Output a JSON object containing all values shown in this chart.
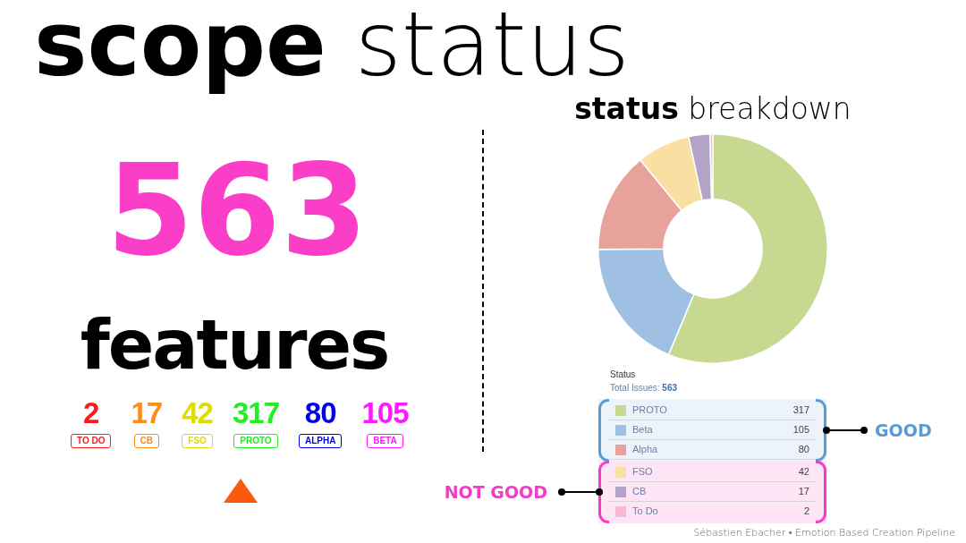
{
  "chart_data": [
    {
      "type": "other",
      "title": "scope status",
      "annotations": [
        "563",
        "features"
      ],
      "categories": [
        "TO DO",
        "CB",
        "FSO",
        "PROTO",
        "ALPHA",
        "BETA"
      ],
      "values": [
        2,
        17,
        42,
        317,
        80,
        105
      ],
      "colors": [
        "#ff1a1a",
        "#ff8c1a",
        "#dddd00",
        "#22ee22",
        "#0000ee",
        "#ff1aff"
      ],
      "data_labels": true
    },
    {
      "type": "donut",
      "title": "status breakdown",
      "categories": [
        null,
        null,
        null,
        null,
        null,
        null
      ],
      "values": [
        56.3,
        18.6,
        14.2,
        7.5,
        3.0,
        0.4
      ],
      "colors": [
        "#c7d991",
        "#9fc0e2",
        "#e7a39b",
        "#f9e0a2",
        "#b3a3c6",
        "#f7b8d4"
      ]
    },
    {
      "type": "other",
      "title": "Status",
      "subtitle": "Total Issues: 563",
      "categories": [
        "PROTO",
        "Beta",
        "Alpha",
        "FSO",
        "CB",
        "To Do"
      ],
      "values": [
        317,
        105,
        80,
        42,
        17,
        2
      ],
      "colors": [
        "#c7d991",
        "#9fc0e2",
        "#e7a39b",
        "#f9e0a2",
        "#b3a3c6",
        "#f7b8d4"
      ],
      "data_labels": true,
      "annotations": [
        "GOOD",
        "NOT GOOD",
        "Sébastien Ebacher • Emotion Based Creation Pipeline"
      ]
    }
  ]
}
